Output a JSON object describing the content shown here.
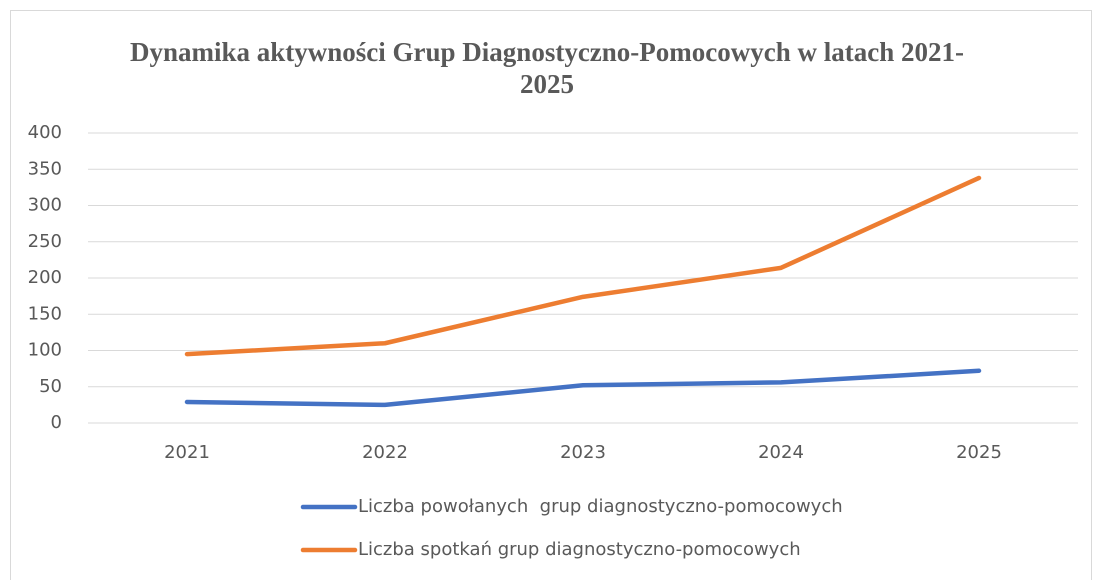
{
  "chart_data": {
    "type": "line",
    "title": "Dynamika aktywności Grup Diagnostyczno-Pomocowych w latach 2021-2025",
    "categories": [
      "2021",
      "2022",
      "2023",
      "2024",
      "2025"
    ],
    "series": [
      {
        "name": "Liczba powołanych  grup diagnostyczno-pomocowych",
        "color": "#4472c4",
        "values": [
          29,
          25,
          52,
          56,
          72
        ]
      },
      {
        "name": "Liczba spotkań grup diagnostyczno-pomocowych",
        "color": "#ed7d31",
        "values": [
          95,
          110,
          174,
          214,
          338
        ]
      }
    ],
    "ylim": [
      0,
      400
    ],
    "yticks": [
      0,
      50,
      100,
      150,
      200,
      250,
      300,
      350,
      400
    ],
    "grid": true,
    "legend": "bottom"
  }
}
